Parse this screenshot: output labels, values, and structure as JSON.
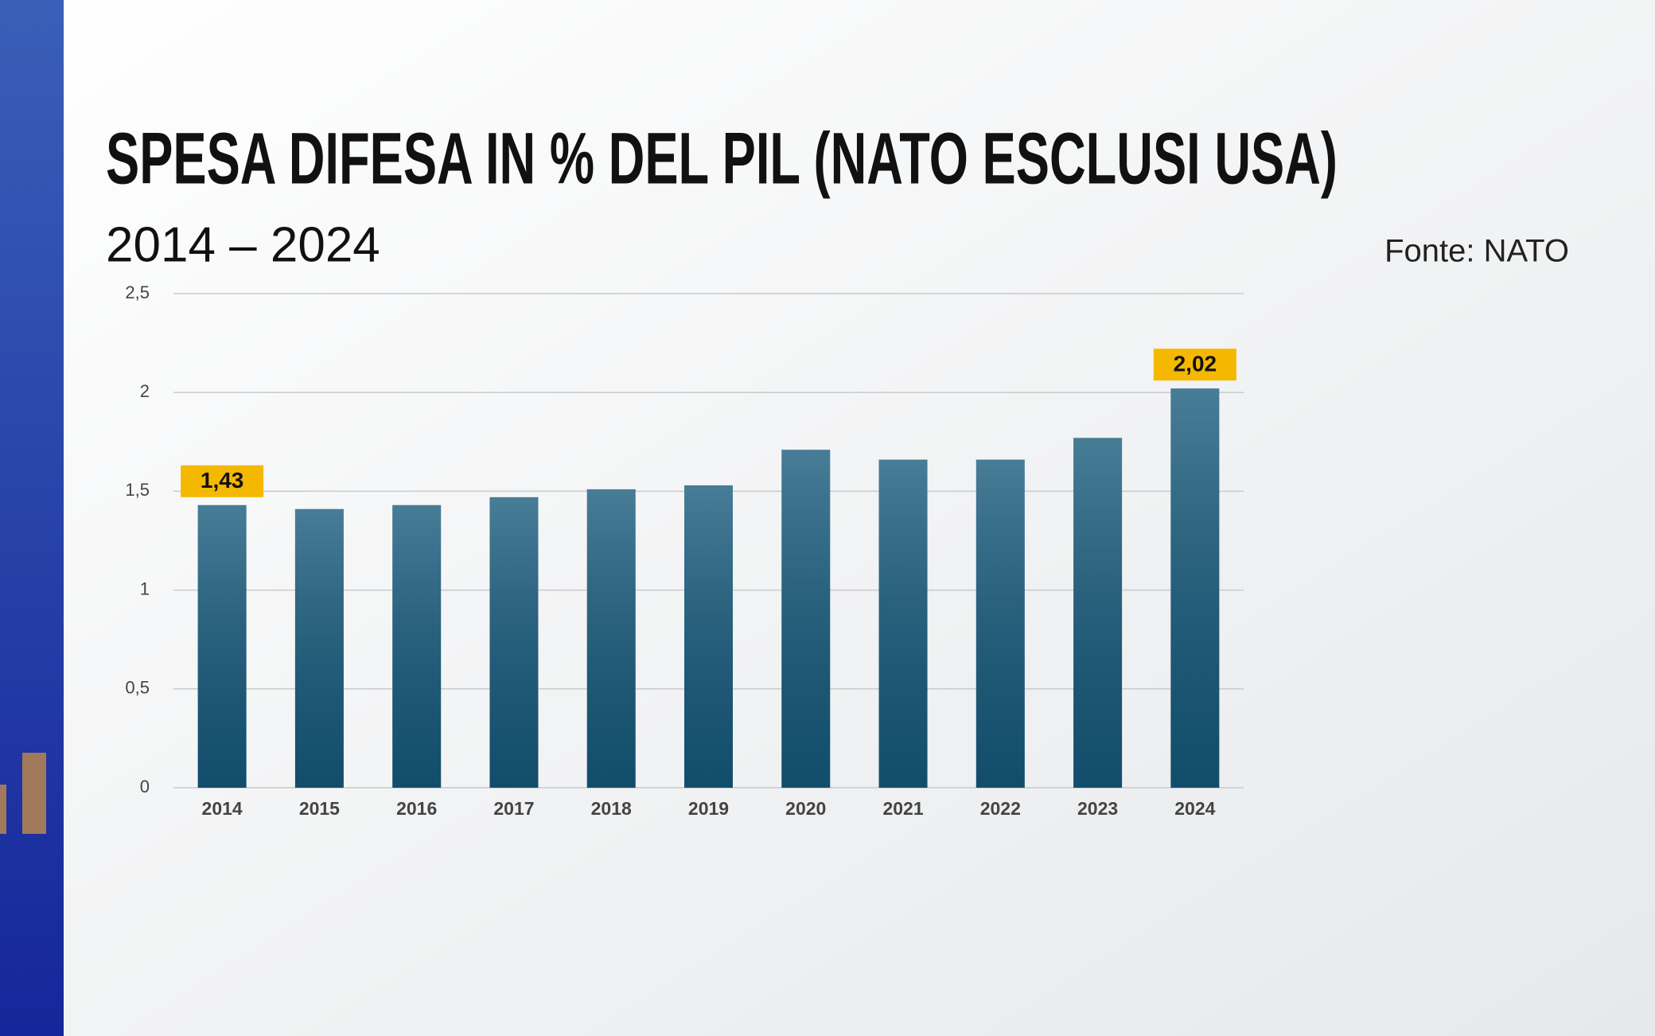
{
  "chart_data": {
    "type": "bar",
    "title": "SPESA DIFESA IN % DEL PIL (NATO ESCLUSI USA)",
    "subtitle": "2014 – 2024",
    "source": "Fonte:  NATO",
    "categories": [
      "2014",
      "2015",
      "2016",
      "2017",
      "2018",
      "2019",
      "2020",
      "2021",
      "2022",
      "2023",
      "2024"
    ],
    "values": [
      1.43,
      1.41,
      1.43,
      1.47,
      1.51,
      1.53,
      1.71,
      1.66,
      1.66,
      1.77,
      2.02
    ],
    "value_labels": [
      "1,43",
      null,
      null,
      null,
      null,
      null,
      null,
      null,
      null,
      null,
      "2,02"
    ],
    "color": "#14587a",
    "ylim": [
      0,
      2.5
    ],
    "yticks": [
      0,
      {
        "value": 0.5,
        "label": "0,5"
      },
      1,
      {
        "value": 1.5,
        "label": "1,5"
      },
      2,
      {
        "value": 2.5,
        "label": "2,5"
      }
    ],
    "grid": true
  }
}
